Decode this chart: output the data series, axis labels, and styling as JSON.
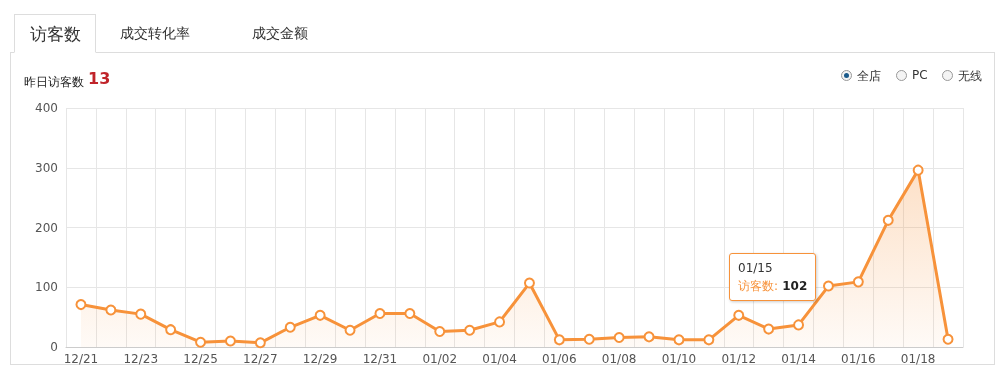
{
  "chart_data": {
    "type": "area",
    "categories": [
      "12/21",
      null,
      "12/23",
      null,
      "12/25",
      null,
      "12/27",
      null,
      "12/29",
      null,
      "12/31",
      null,
      "01/02",
      null,
      "01/04",
      null,
      "01/06",
      null,
      "01/08",
      null,
      "01/10",
      null,
      "01/12",
      null,
      "01/14",
      null,
      "01/16",
      null,
      "01/18",
      null
    ],
    "series": [
      {
        "color": "#f7923a",
        "values": [
          71,
          62,
          55,
          29,
          8,
          10,
          7,
          33,
          53,
          28,
          56,
          56,
          26,
          28,
          42,
          107,
          12,
          13,
          16,
          17,
          12,
          12,
          53,
          30,
          37,
          102,
          109,
          212,
          296,
          13
        ]
      }
    ],
    "ylim": [
      0,
      400
    ],
    "yticks": [
      0,
      100,
      200,
      300,
      400
    ],
    "grid": true,
    "marker": "circle",
    "line_style": "solid",
    "annotations": [
      "访客数",
      "成交转化率",
      "成交金额",
      "昨日访客数",
      "13",
      "全店",
      "PC",
      "无线",
      "01/15",
      "访客数: 102"
    ]
  }
}
